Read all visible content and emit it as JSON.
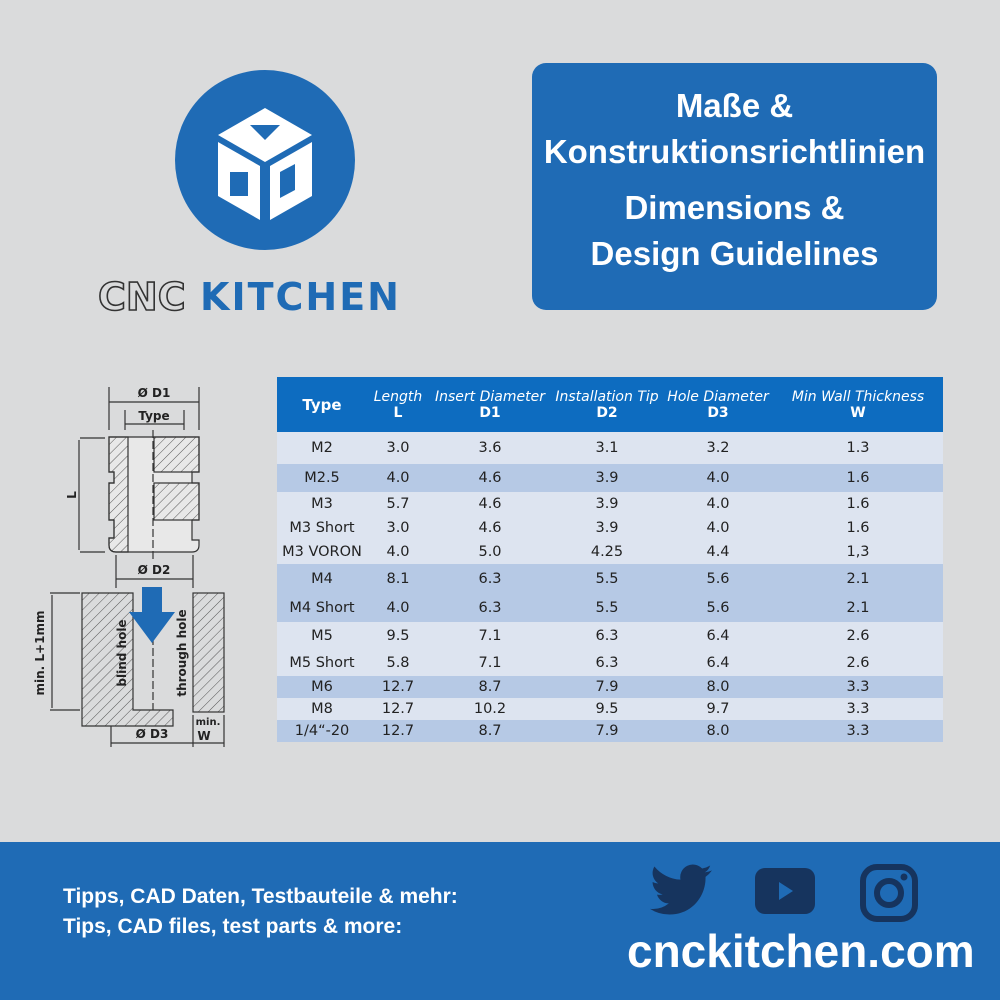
{
  "brand": {
    "logo_text_left": "CNC",
    "logo_text_right": "KITCHEN",
    "color": "#1f6bb5"
  },
  "title": {
    "de_line1": "Maße &",
    "de_line2": "Konstruktionsrichtlinien",
    "en_line1": "Dimensions &",
    "en_line2": "Design Guidelines"
  },
  "diagram": {
    "d1": "Ø D1",
    "type": "Type",
    "l": "L",
    "d2": "Ø D2",
    "min_len": "min. L+1mm",
    "blind": "blind hole",
    "through": "through hole",
    "d3": "Ø D3",
    "min": "min.",
    "w": "W"
  },
  "table": {
    "headers": [
      {
        "top": "",
        "bottom": "Type"
      },
      {
        "top": "Length",
        "bottom": "L"
      },
      {
        "top": "Insert Diameter",
        "bottom": "D1"
      },
      {
        "top": "Installation Tip",
        "bottom": "D2"
      },
      {
        "top": "Hole Diameter",
        "bottom": "D3"
      },
      {
        "top": "Min Wall Thickness",
        "bottom": "W"
      }
    ],
    "groups": [
      {
        "rows": [
          [
            "M2",
            "3.0",
            "3.6",
            "3.1",
            "3.2",
            "1.3"
          ]
        ]
      },
      {
        "rows": [
          [
            "M2.5",
            "4.0",
            "4.6",
            "3.9",
            "4.0",
            "1.6"
          ]
        ]
      },
      {
        "rows": [
          [
            "M3",
            "5.7",
            "4.6",
            "3.9",
            "4.0",
            "1.6"
          ],
          [
            "M3 Short",
            "3.0",
            "4.6",
            "3.9",
            "4.0",
            "1.6"
          ],
          [
            "M3 VORON",
            "4.0",
            "5.0",
            "4.25",
            "4.4",
            "1,3"
          ]
        ]
      },
      {
        "rows": [
          [
            "M4",
            "8.1",
            "6.3",
            "5.5",
            "5.6",
            "2.1"
          ],
          [
            "M4 Short",
            "4.0",
            "6.3",
            "5.5",
            "5.6",
            "2.1"
          ]
        ]
      },
      {
        "rows": [
          [
            "M5",
            "9.5",
            "7.1",
            "6.3",
            "6.4",
            "2.6"
          ],
          [
            "M5 Short",
            "5.8",
            "7.1",
            "6.3",
            "6.4",
            "2.6"
          ]
        ]
      },
      {
        "rows": [
          [
            "M6",
            "12.7",
            "8.7",
            "7.9",
            "8.0",
            "3.3"
          ]
        ]
      },
      {
        "rows": [
          [
            "M8",
            "12.7",
            "10.2",
            "9.5",
            "9.7",
            "3.3"
          ]
        ]
      },
      {
        "rows": [
          [
            "1/4“-20",
            "12.7",
            "8.7",
            "7.9",
            "8.0",
            "3.3"
          ]
        ]
      }
    ]
  },
  "footer": {
    "tips_de": "Tipps, CAD Daten, Testbauteile & mehr:",
    "tips_en": "Tips, CAD files, test parts & more:",
    "url": "cnckitchen.com",
    "icons": [
      "twitter-icon",
      "youtube-icon",
      "instagram-icon"
    ]
  }
}
